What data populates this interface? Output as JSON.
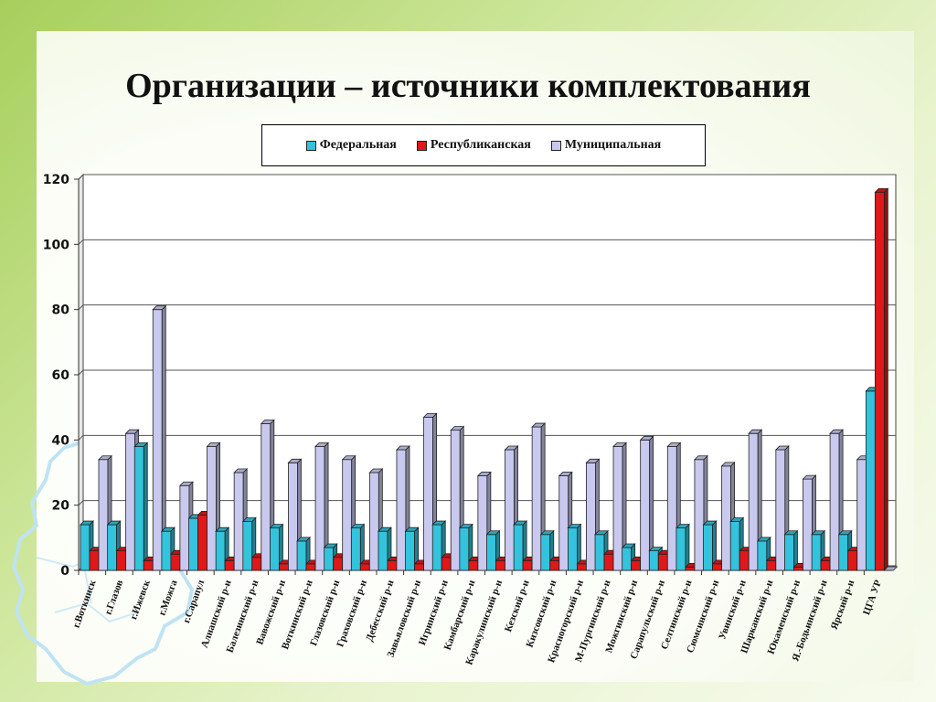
{
  "title": "Организации – источники комплектования",
  "legend": {
    "federal": "Федеральная",
    "republic": "Республиканская",
    "municipal": "Муниципальная"
  },
  "colors": {
    "federal": "#33c3dc",
    "republic": "#e01818",
    "municipal": "#c9c9ef"
  },
  "chart_data": {
    "type": "bar",
    "ylim": [
      0,
      120
    ],
    "yticks": [
      0,
      20,
      40,
      60,
      80,
      100,
      120
    ],
    "grid": true,
    "legend_position": "top",
    "categories": [
      "г.Воткинск",
      "г.Глазов",
      "г.Ижевск",
      "г.Можга",
      "г.Сарапул",
      "Алнашский р-н",
      "Балезинский р-н",
      "Вавожский р-н",
      "Воткинский р-н",
      "Глазовский р-н",
      "Граховский р-н",
      "Дебесский р-н",
      "Завьяловский р-н",
      "Игринский р-н",
      "Камбарский р-н",
      "Каракулинский р-н",
      "Кезский р-н",
      "Кизсовский р-н",
      "Красногорский р-н",
      "М-Пургинский р-н",
      "Можгинский р-н",
      "Сарапульский р-н",
      "Селтинский р-н",
      "Сюмсинский р-н",
      "Увинский р-н",
      "Шарканский р-н",
      "Юкаменский р-н",
      "Я.-Бодьинский р-н",
      "Ярский р-н",
      "ЦГА УР"
    ],
    "series": [
      {
        "name": "Федеральная",
        "values": [
          14,
          14,
          38,
          12,
          16,
          12,
          15,
          13,
          9,
          7,
          13,
          12,
          12,
          14,
          13,
          11,
          14,
          11,
          13,
          11,
          7,
          6,
          13,
          14,
          15,
          9,
          11,
          11,
          11,
          55
        ]
      },
      {
        "name": "Республиканская",
        "values": [
          6,
          6,
          3,
          5,
          17,
          3,
          4,
          2,
          2,
          4,
          2,
          3,
          2,
          4,
          3,
          3,
          3,
          3,
          2,
          5,
          3,
          5,
          1,
          2,
          6,
          3,
          1,
          3,
          6,
          116
        ]
      },
      {
        "name": "Муниципальная",
        "values": [
          34,
          42,
          80,
          26,
          38,
          30,
          45,
          33,
          38,
          34,
          30,
          37,
          47,
          43,
          29,
          37,
          44,
          29,
          33,
          38,
          40,
          38,
          34,
          32,
          42,
          37,
          28,
          42,
          34,
          0
        ]
      }
    ]
  }
}
